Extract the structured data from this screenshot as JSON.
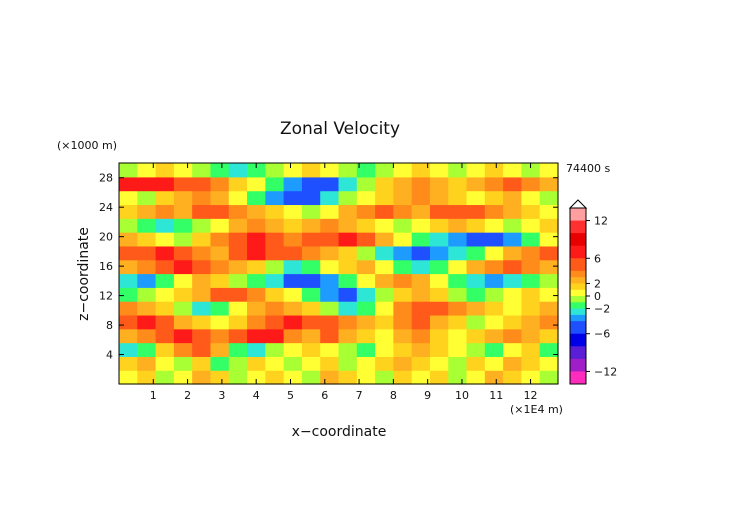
{
  "chart_data": {
    "type": "heatmap",
    "title": "Zonal Velocity",
    "xlabel": "x−coordinate",
    "ylabel": "z−coordinate",
    "x_unit_label": "(×1E4 m)",
    "y_unit_label": "(×1000 m)",
    "time_label": "74400 s",
    "xlim": [
      0,
      12.8
    ],
    "ylim": [
      0,
      30
    ],
    "x_ticks": [
      "1",
      "2",
      "3",
      "4",
      "5",
      "6",
      "7",
      "8",
      "9",
      "10",
      "11",
      "12"
    ],
    "y_ticks": [
      "4",
      "8",
      "12",
      "16",
      "20",
      "24",
      "28"
    ],
    "colorbar": {
      "tick_labels": [
        "12",
        "6",
        "2",
        "0",
        "−2",
        "−6",
        "−12"
      ],
      "tick_values": [
        12,
        6,
        2,
        0,
        -2,
        -6,
        -12
      ],
      "levels": [
        {
          "min": 12,
          "max": 14,
          "color": "#ff9f9f"
        },
        {
          "min": 10,
          "max": 12,
          "color": "#ff3030"
        },
        {
          "min": 8,
          "max": 10,
          "color": "#e80000"
        },
        {
          "min": 6,
          "max": 8,
          "color": "#ff1a1a"
        },
        {
          "min": 4,
          "max": 6,
          "color": "#ff5a1a"
        },
        {
          "min": 3,
          "max": 4,
          "color": "#ff8c1a"
        },
        {
          "min": 2,
          "max": 3,
          "color": "#ffb020"
        },
        {
          "min": 1,
          "max": 2,
          "color": "#ffd21e"
        },
        {
          "min": 0,
          "max": 1,
          "color": "#ffff33"
        },
        {
          "min": -1,
          "max": 0,
          "color": "#a8ff33"
        },
        {
          "min": -2,
          "max": -1,
          "color": "#33ff66"
        },
        {
          "min": -3,
          "max": -2,
          "color": "#2ee6d6"
        },
        {
          "min": -4,
          "max": -3,
          "color": "#1e9bff"
        },
        {
          "min": -6,
          "max": -4,
          "color": "#1e50ff"
        },
        {
          "min": -8,
          "max": -6,
          "color": "#0000e6"
        },
        {
          "min": -10,
          "max": -8,
          "color": "#5a1ed6"
        },
        {
          "min": -12,
          "max": -10,
          "color": "#a01ec8"
        },
        {
          "min": -14,
          "max": -12,
          "color": "#ff2dbe"
        }
      ]
    },
    "z_grid_note": "approximate velocity field sampled on a 24 x 16 grid (x from 0 to 12.8, z from 0 to 30)",
    "z_values": [
      [
        0,
        1,
        -1,
        0,
        2,
        1,
        -1,
        0,
        1,
        0,
        -1,
        2,
        1,
        0,
        -1,
        1,
        0,
        1,
        -1,
        0,
        2,
        1,
        0,
        -1
      ],
      [
        1,
        2,
        0,
        -1,
        1,
        -2,
        -1,
        1,
        0,
        -1,
        0,
        1,
        -1,
        0,
        1,
        2,
        1,
        0,
        -1,
        1,
        0,
        2,
        1,
        0
      ],
      [
        -3,
        -2,
        1,
        3,
        4,
        2,
        -2,
        -3,
        -1,
        0,
        1,
        0,
        -1,
        -2,
        0,
        1,
        2,
        1,
        0,
        -1,
        -2,
        0,
        1,
        -2
      ],
      [
        2,
        3,
        5,
        6,
        4,
        3,
        5,
        7,
        6,
        3,
        2,
        4,
        2,
        1,
        0,
        2,
        3,
        1,
        0,
        1,
        2,
        3,
        2,
        1
      ],
      [
        5,
        6,
        4,
        2,
        1,
        0,
        1,
        3,
        4,
        6,
        5,
        4,
        3,
        2,
        1,
        3,
        4,
        2,
        1,
        -1,
        0,
        1,
        2,
        3
      ],
      [
        3,
        2,
        1,
        -1,
        -3,
        -2,
        0,
        2,
        3,
        2,
        1,
        -1,
        -3,
        -2,
        0,
        3,
        5,
        4,
        3,
        2,
        1,
        0,
        1,
        2
      ],
      [
        -2,
        -1,
        0,
        1,
        2,
        4,
        5,
        3,
        1,
        0,
        -2,
        -4,
        -5,
        -3,
        -1,
        1,
        2,
        1,
        -1,
        -2,
        -1,
        0,
        1,
        0
      ],
      [
        -3,
        -4,
        -2,
        0,
        2,
        1,
        -1,
        -2,
        -3,
        -5,
        -6,
        -4,
        -2,
        0,
        2,
        3,
        2,
        0,
        -2,
        -3,
        -4,
        -3,
        -2,
        -1
      ],
      [
        2,
        3,
        4,
        6,
        5,
        3,
        2,
        1,
        -1,
        -3,
        -2,
        0,
        1,
        2,
        0,
        -2,
        -3,
        -2,
        0,
        2,
        3,
        4,
        3,
        2
      ],
      [
        4,
        5,
        6,
        4,
        3,
        2,
        4,
        6,
        5,
        4,
        3,
        2,
        1,
        -1,
        -3,
        -4,
        -5,
        -4,
        -3,
        -2,
        0,
        2,
        3,
        4
      ],
      [
        2,
        1,
        0,
        -1,
        1,
        3,
        5,
        6,
        4,
        3,
        4,
        5,
        6,
        4,
        2,
        0,
        -2,
        -3,
        -4,
        -5,
        -6,
        -4,
        -2,
        0
      ],
      [
        -1,
        -2,
        -3,
        -2,
        -1,
        0,
        2,
        3,
        2,
        1,
        2,
        3,
        2,
        1,
        0,
        -1,
        0,
        1,
        2,
        1,
        0,
        -1,
        0,
        1
      ],
      [
        1,
        2,
        3,
        2,
        4,
        5,
        3,
        2,
        1,
        0,
        -1,
        0,
        2,
        3,
        4,
        3,
        2,
        4,
        5,
        4,
        3,
        2,
        1,
        0
      ],
      [
        0,
        -1,
        1,
        2,
        3,
        2,
        0,
        -2,
        -4,
        -6,
        -5,
        -3,
        -1,
        0,
        1,
        2,
        3,
        2,
        1,
        0,
        1,
        2,
        0,
        -1
      ],
      [
        6,
        7,
        6,
        5,
        4,
        3,
        1,
        0,
        -2,
        -4,
        -6,
        -5,
        -3,
        -1,
        1,
        2,
        3,
        2,
        1,
        2,
        3,
        4,
        3,
        2
      ],
      [
        -1,
        0,
        1,
        0,
        -1,
        -2,
        -3,
        -2,
        -1,
        0,
        1,
        0,
        -1,
        -2,
        -1,
        0,
        1,
        0,
        -1,
        0,
        1,
        0,
        -1,
        0
      ]
    ]
  }
}
